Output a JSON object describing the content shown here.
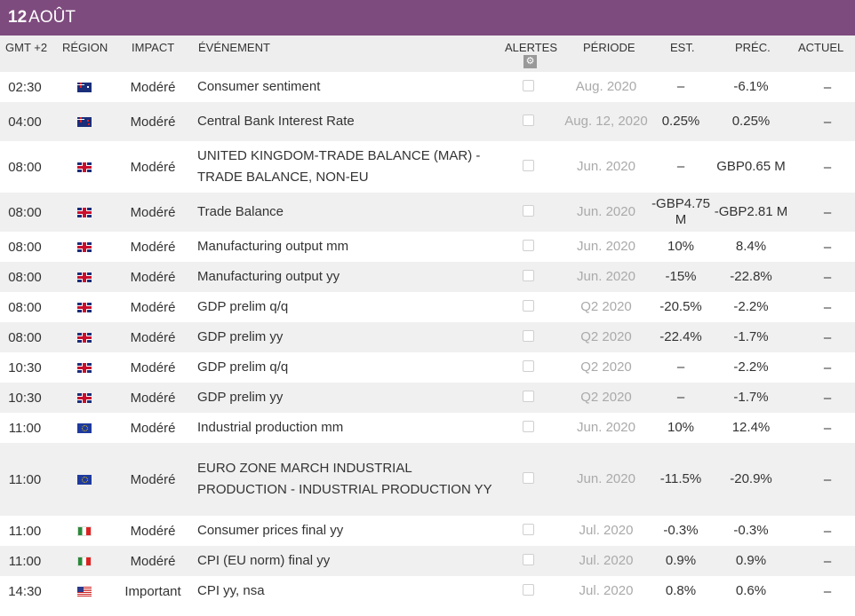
{
  "header": {
    "day": "12",
    "month": "AOÛT",
    "bg_color": "#7e4b7e"
  },
  "columns": {
    "time": "GMT +2",
    "region": "RÉGION",
    "impact": "IMPACT",
    "event": "ÉVÉNEMENT",
    "alerts": "ALERTES",
    "period": "PÉRIODE",
    "est": "EST.",
    "prev": "PRÉC.",
    "actual": "ACTUEL",
    "alerts_icon": "gear-icon"
  },
  "rows": [
    {
      "time": "02:30",
      "flag": "au",
      "impact": "Modéré",
      "event": "Consumer sentiment",
      "period": "Aug. 2020",
      "est": "–",
      "prev": "-6.1%",
      "actual": "–"
    },
    {
      "time": "04:00",
      "flag": "nz",
      "impact": "Modéré",
      "event": "Central Bank Interest Rate",
      "period": "Aug. 12, 2020",
      "est": "0.25%",
      "prev": "0.25%",
      "actual": "–"
    },
    {
      "time": "08:00",
      "flag": "uk",
      "impact": "Modéré",
      "event": "UNITED KINGDOM-TRADE BALANCE (MAR) - TRADE BALANCE, NON-EU",
      "period": "Jun. 2020",
      "est": "–",
      "prev": "GBP0.65 M",
      "actual": "–"
    },
    {
      "time": "08:00",
      "flag": "uk",
      "impact": "Modéré",
      "event": "Trade Balance",
      "period": "Jun. 2020",
      "est": "-GBP4.75 M",
      "prev": "-GBP2.81 M",
      "actual": "–"
    },
    {
      "time": "08:00",
      "flag": "uk",
      "impact": "Modéré",
      "event": "Manufacturing output mm",
      "period": "Jun. 2020",
      "est": "10%",
      "prev": "8.4%",
      "actual": "–"
    },
    {
      "time": "08:00",
      "flag": "uk",
      "impact": "Modéré",
      "event": "Manufacturing output yy",
      "period": "Jun. 2020",
      "est": "-15%",
      "prev": "-22.8%",
      "actual": "–"
    },
    {
      "time": "08:00",
      "flag": "uk",
      "impact": "Modéré",
      "event": "GDP prelim q/q",
      "period": "Q2 2020",
      "est": "-20.5%",
      "prev": "-2.2%",
      "actual": "–"
    },
    {
      "time": "08:00",
      "flag": "uk",
      "impact": "Modéré",
      "event": "GDP prelim yy",
      "period": "Q2 2020",
      "est": "-22.4%",
      "prev": "-1.7%",
      "actual": "–"
    },
    {
      "time": "10:30",
      "flag": "uk",
      "impact": "Modéré",
      "event": "GDP prelim q/q",
      "period": "Q2 2020",
      "est": "–",
      "prev": "-2.2%",
      "actual": "–"
    },
    {
      "time": "10:30",
      "flag": "uk",
      "impact": "Modéré",
      "event": "GDP prelim yy",
      "period": "Q2 2020",
      "est": "–",
      "prev": "-1.7%",
      "actual": "–"
    },
    {
      "time": "11:00",
      "flag": "eu",
      "impact": "Modéré",
      "event": "Industrial production mm",
      "period": "Jun. 2020",
      "est": "10%",
      "prev": "12.4%",
      "actual": "–"
    },
    {
      "time": "11:00",
      "flag": "eu",
      "impact": "Modéré",
      "event": "EURO ZONE MARCH INDUSTRIAL PRODUCTION - INDUSTRIAL PRODUCTION YY",
      "period": "Jun. 2020",
      "est": "-11.5%",
      "prev": "-20.9%",
      "actual": "–"
    },
    {
      "time": "11:00",
      "flag": "it",
      "impact": "Modéré",
      "event": "Consumer prices final yy",
      "period": "Jul. 2020",
      "est": "-0.3%",
      "prev": "-0.3%",
      "actual": "–"
    },
    {
      "time": "11:00",
      "flag": "it",
      "impact": "Modéré",
      "event": "CPI (EU norm) final yy",
      "period": "Jul. 2020",
      "est": "0.9%",
      "prev": "0.9%",
      "actual": "–"
    },
    {
      "time": "14:30",
      "flag": "us",
      "impact": "Important",
      "event": "CPI yy, nsa",
      "period": "Jul. 2020",
      "est": "0.8%",
      "prev": "0.6%",
      "actual": "–"
    }
  ]
}
